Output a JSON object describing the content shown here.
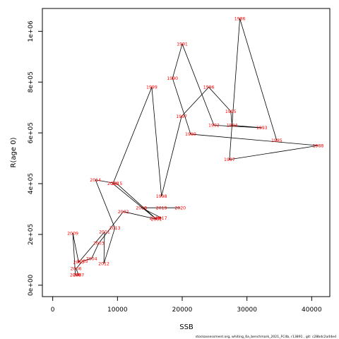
{
  "chart_data": {
    "type": "line",
    "xlabel": "SSB",
    "ylabel": "R(age 0)",
    "xlim": [
      -1600,
      42800
    ],
    "ylim": [
      -45000,
      1090000
    ],
    "xticks": [
      0,
      10000,
      20000,
      30000,
      40000
    ],
    "xtick_labels": [
      "0",
      "10000",
      "20000",
      "30000",
      "40000"
    ],
    "yticks": [
      0,
      200000,
      400000,
      600000,
      800000,
      1000000
    ],
    "ytick_labels": [
      "0e+00",
      "2e+05",
      "4e+05",
      "6e+05",
      "8e+05",
      "1e+06"
    ],
    "grid": false,
    "line_color": "#000000",
    "label_color": "#ff0000",
    "footer": "stockassessment.org,  whiting_6a_benchmark_2021_FC4b,  r13891  ,  git: c28bdc2a44ed",
    "points": [
      {
        "year": "1985",
        "x": 34600,
        "y": 570000
      },
      {
        "year": "1986",
        "x": 28900,
        "y": 1050000
      },
      {
        "year": "1987",
        "x": 27300,
        "y": 495000
      },
      {
        "year": "1988",
        "x": 41000,
        "y": 550000
      },
      {
        "year": "1989",
        "x": 21300,
        "y": 595000
      },
      {
        "year": "1990",
        "x": 18500,
        "y": 815000
      },
      {
        "year": "1991",
        "x": 20000,
        "y": 950000
      },
      {
        "year": "1992",
        "x": 24900,
        "y": 630000
      },
      {
        "year": "1993",
        "x": 32300,
        "y": 620000
      },
      {
        "year": "1994",
        "x": 27700,
        "y": 630000
      },
      {
        "year": "1995",
        "x": 27500,
        "y": 685000
      },
      {
        "year": "1996",
        "x": 24100,
        "y": 780000
      },
      {
        "year": "1997",
        "x": 19900,
        "y": 665000
      },
      {
        "year": "1998",
        "x": 16800,
        "y": 350000
      },
      {
        "year": "1999",
        "x": 15300,
        "y": 780000
      },
      {
        "year": "2000",
        "x": 9300,
        "y": 400000
      },
      {
        "year": "2001",
        "x": 16000,
        "y": 260000
      },
      {
        "year": "2002",
        "x": 10900,
        "y": 290000
      },
      {
        "year": "2003",
        "x": 7100,
        "y": 165000
      },
      {
        "year": "2004",
        "x": 6000,
        "y": 105000
      },
      {
        "year": "2005",
        "x": 4600,
        "y": 95000
      },
      {
        "year": "2006",
        "x": 3600,
        "y": 65000
      },
      {
        "year": "2007",
        "x": 4000,
        "y": 40000
      },
      {
        "year": "2008",
        "x": 3500,
        "y": 40000
      },
      {
        "year": "2009",
        "x": 3100,
        "y": 205000
      },
      {
        "year": "2010",
        "x": 4000,
        "y": 90000
      },
      {
        "year": "2011",
        "x": 8000,
        "y": 210000
      },
      {
        "year": "2012",
        "x": 7900,
        "y": 85000
      },
      {
        "year": "2013",
        "x": 9600,
        "y": 225000
      },
      {
        "year": "2014",
        "x": 6600,
        "y": 415000
      },
      {
        "year": "2015",
        "x": 9900,
        "y": 400000
      },
      {
        "year": "2016",
        "x": 15800,
        "y": 265000
      },
      {
        "year": "2017",
        "x": 16800,
        "y": 265000
      },
      {
        "year": "2018",
        "x": 13700,
        "y": 305000
      },
      {
        "year": "2019",
        "x": 16800,
        "y": 305000
      },
      {
        "year": "2020",
        "x": 19700,
        "y": 305000
      }
    ]
  }
}
